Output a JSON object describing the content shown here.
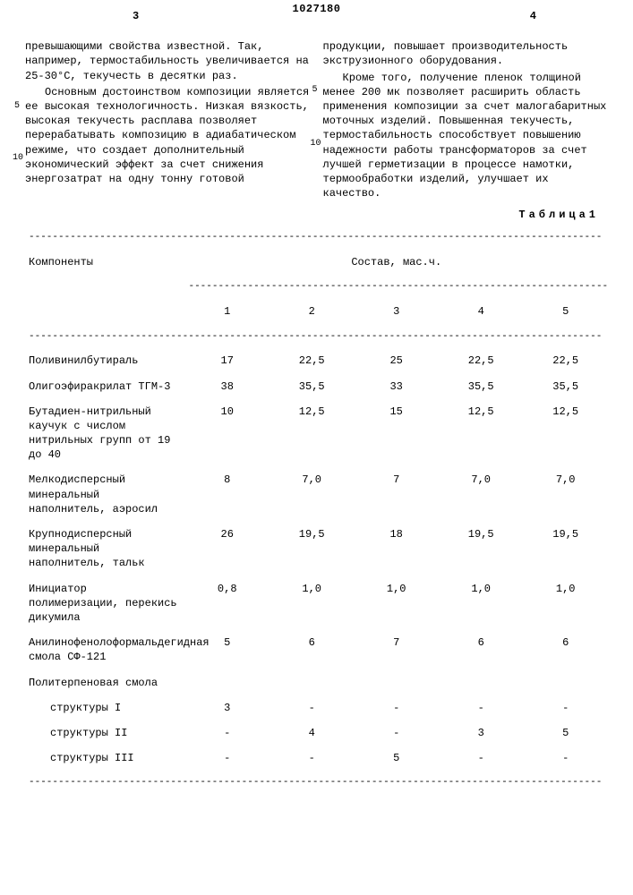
{
  "document_number": "1027180",
  "page_markers": {
    "left": "3",
    "right": "4"
  },
  "left_column": {
    "p1": "превышающими свойства известной. Так, например, термостабильность увеличивается на 25-30°С, текучесть в десятки раз.",
    "p2": "Основным достоинством композиции является ее высокая технологичность. Низкая вязкость, высокая текучесть расплава позволяет перерабатывать композицию в адиабатическом режиме, что создает дополнительный экономический эффект за счет снижения энергозатрат на одну тонну готовой"
  },
  "right_column": {
    "p1": "продукции, повышает производительность экструзионного оборудования.",
    "p2": "Кроме того, получение пленок толщиной менее 200 мк позволяет расширить область применения композиции за счет малогабаритных моточных изделий. Повышенная текучесть, термостабильность способствует повышению надежности работы трансформаторов за счет лучшей герметизации в процессе намотки, термообработки изделий, улучшает их качество."
  },
  "table_label": "Таблица1",
  "table": {
    "header_group": "Состав, мас.ч.",
    "header_component": "Компоненты",
    "cols": [
      "1",
      "2",
      "3",
      "4",
      "5"
    ],
    "rows": [
      {
        "label": "Поливинилбутираль",
        "vals": [
          "17",
          "22,5",
          "25",
          "22,5",
          "22,5"
        ]
      },
      {
        "label": "Олигоэфиракрилат ТГМ-3",
        "vals": [
          "38",
          "35,5",
          "33",
          "35,5",
          "35,5"
        ]
      },
      {
        "label": "Бутадиен-нитрильный каучук с числом нитрильных групп от 19 до 40",
        "vals": [
          "10",
          "12,5",
          "15",
          "12,5",
          "12,5"
        ]
      },
      {
        "label": "Мелкодисперсный минеральный наполнитель, аэросил",
        "vals": [
          "8",
          "7,0",
          "7",
          "7,0",
          "7,0"
        ]
      },
      {
        "label": "Крупнодисперсный минеральный наполнитель, тальк",
        "vals": [
          "26",
          "19,5",
          "18",
          "19,5",
          "19,5"
        ]
      },
      {
        "label": "Инициатор полимеризации, перекись дикумила",
        "vals": [
          "0,8",
          "1,0",
          "1,0",
          "1,0",
          "1,0"
        ]
      },
      {
        "label": "Анилинофенолоформальдегидная смола СФ-121",
        "vals": [
          "5",
          "6",
          "7",
          "6",
          "6"
        ]
      },
      {
        "label": "Политерпеновая смола",
        "vals": [
          "",
          "",
          "",
          "",
          ""
        ]
      }
    ],
    "subrows": [
      {
        "label": "структуры I",
        "vals": [
          "3",
          "-",
          "-",
          "-",
          "-"
        ]
      },
      {
        "label": "структуры II",
        "vals": [
          "-",
          "4",
          "-",
          "3",
          "5"
        ]
      },
      {
        "label": "структуры III",
        "vals": [
          "-",
          "-",
          "5",
          "-",
          "-"
        ]
      }
    ]
  },
  "line_markers": {
    "five": "5",
    "ten": "10"
  },
  "dash": "-------------------------------------------------------------------------------------------------"
}
